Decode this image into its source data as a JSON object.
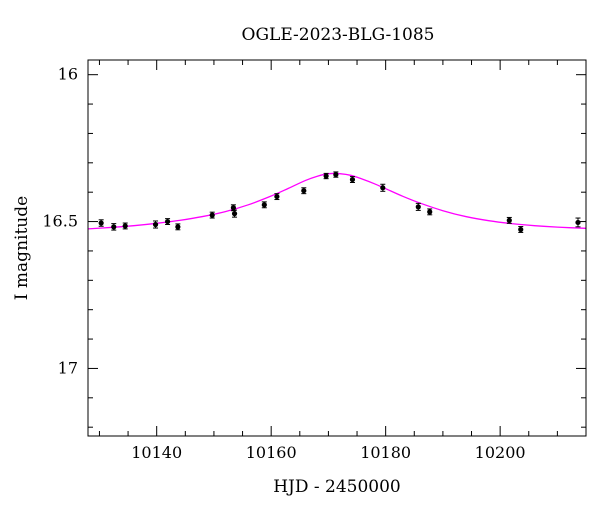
{
  "chart_data": {
    "type": "scatter",
    "title": "OGLE-2023-BLG-1085",
    "xlabel": "HJD - 2450000",
    "ylabel": "I magnitude",
    "xlim": [
      10128,
      10215
    ],
    "ylim": [
      17.23,
      15.95
    ],
    "y_inverted": true,
    "x_major_ticks": [
      10140,
      10160,
      10180,
      10200
    ],
    "x_minor_step": 5,
    "y_major_ticks": [
      16,
      16.5,
      17
    ],
    "y_major_tick_labels": [
      "16",
      "16.5",
      "17"
    ],
    "y_minor_step": 0.1,
    "grid": false,
    "model_color": "#ff00ff",
    "model": {
      "x": [
        10128,
        10132,
        10136,
        10140,
        10144,
        10148,
        10152,
        10156,
        10160,
        10163,
        10166,
        10168,
        10170,
        10172,
        10174,
        10176,
        10178,
        10180,
        10183,
        10186,
        10190,
        10194,
        10198,
        10202,
        10206,
        10210,
        10215
      ],
      "y": [
        16.525,
        16.52,
        16.514,
        16.506,
        16.496,
        16.483,
        16.466,
        16.443,
        16.413,
        16.387,
        16.36,
        16.346,
        16.337,
        16.337,
        16.343,
        16.356,
        16.371,
        16.388,
        16.414,
        16.437,
        16.463,
        16.483,
        16.497,
        16.507,
        16.514,
        16.519,
        16.523
      ]
    },
    "series": [
      {
        "x": [
          10130.3,
          10132.5,
          10134.5,
          10139.8,
          10141.9,
          10143.7,
          10149.7,
          10153.4,
          10153.6,
          10158.8,
          10161.0,
          10165.7,
          10169.6,
          10171.3,
          10174.2,
          10179.5,
          10185.7,
          10187.7,
          10201.6,
          10203.6,
          10213.6
        ],
        "y": [
          16.505,
          16.518,
          16.515,
          16.51,
          16.5,
          16.518,
          16.478,
          16.453,
          16.473,
          16.443,
          16.415,
          16.395,
          16.345,
          16.34,
          16.357,
          16.385,
          16.45,
          16.467,
          16.496,
          16.527,
          16.503
        ],
        "err": [
          0.011,
          0.011,
          0.01,
          0.012,
          0.01,
          0.01,
          0.01,
          0.01,
          0.012,
          0.01,
          0.01,
          0.01,
          0.009,
          0.009,
          0.01,
          0.012,
          0.012,
          0.01,
          0.01,
          0.01,
          0.015
        ]
      }
    ]
  }
}
